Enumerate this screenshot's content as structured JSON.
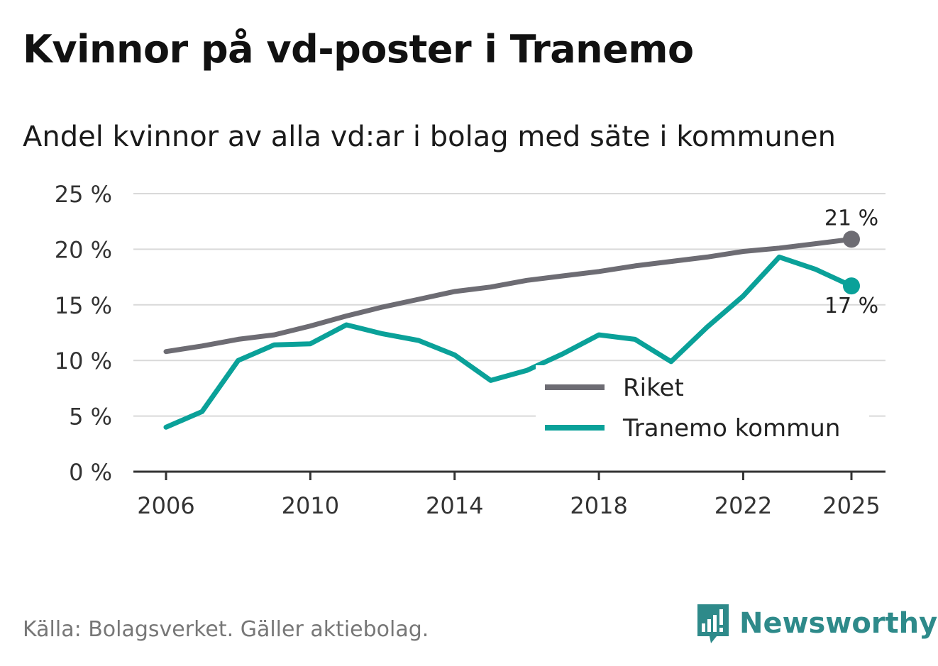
{
  "colors": {
    "riket": "#6d6c73",
    "tranemo": "#0aa199",
    "grid": "#d9d9d9",
    "axis": "#333333",
    "brand": "#2e8a8a"
  },
  "brand": {
    "name": "Newsworthy",
    "icon": "bar-chart-speech-bubble-icon"
  },
  "chart_data": {
    "type": "line",
    "title": "Kvinnor på vd-poster i Tranemo",
    "subtitle": "Andel kvinnor av alla vd:ar i bolag med säte i kommunen",
    "source": "Källa: Bolagsverket. Gäller aktiebolag.",
    "xlabel": "",
    "ylabel": "",
    "xlim": [
      2006,
      2025
    ],
    "ylim": [
      0,
      25
    ],
    "x_ticks": [
      2006,
      2010,
      2014,
      2018,
      2022,
      2025
    ],
    "y_ticks": [
      0,
      5,
      10,
      15,
      20,
      25
    ],
    "y_tick_labels": [
      "0 %",
      "5 %",
      "10 %",
      "15 %",
      "20 %",
      "25 %"
    ],
    "grid": true,
    "legend_position": "bottom-right",
    "x": [
      2006,
      2007,
      2008,
      2009,
      2010,
      2011,
      2012,
      2013,
      2014,
      2015,
      2016,
      2017,
      2018,
      2019,
      2020,
      2021,
      2022,
      2023,
      2024,
      2025
    ],
    "series": [
      {
        "name": "Riket",
        "end_label": "21 %",
        "values": [
          10.8,
          11.3,
          11.9,
          12.3,
          13.1,
          14.0,
          14.8,
          15.5,
          16.2,
          16.6,
          17.2,
          17.6,
          18.0,
          18.5,
          18.9,
          19.3,
          19.8,
          20.1,
          20.5,
          20.9
        ]
      },
      {
        "name": "Tranemo kommun",
        "end_label": "17 %",
        "values": [
          4.0,
          5.4,
          10.0,
          11.4,
          11.5,
          13.2,
          12.4,
          11.8,
          10.5,
          8.2,
          9.1,
          10.6,
          12.3,
          11.9,
          9.9,
          13.0,
          15.8,
          19.3,
          18.2,
          16.7
        ]
      }
    ]
  }
}
